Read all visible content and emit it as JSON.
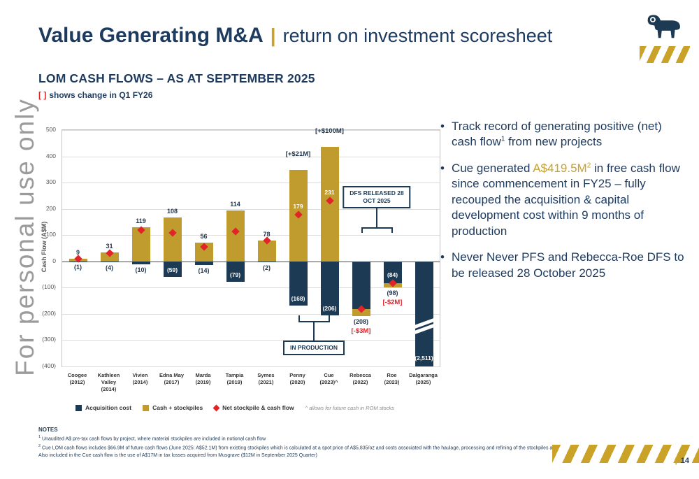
{
  "slide": {
    "title": "Value Generating M&A",
    "title_separator": "|",
    "subtitle": "return on investment scoresheet",
    "watermark": "For personal use only",
    "bullet_glyph": "•",
    "page_number_bar": "|",
    "page_number": "14"
  },
  "chart_header": {
    "title": "LOM CASH FLOWS – AS AT SEPTEMBER 2025",
    "bracket": "[ ]",
    "subtitle": "shows change in Q1 FY26"
  },
  "bullets": {
    "b1": {
      "t1": "Track record of generating positive (net) cash flow",
      "sup": "1",
      "t2": " from new projects"
    },
    "b2": {
      "t1": "Cue generated ",
      "highlight": "A$419.5M",
      "sup": "2",
      "t2": " in free cash flow since commencement in FY25 – fully recouped the acquisition & capital development cost within 9 months of production"
    },
    "b3": {
      "t1": "Never Never PFS and Rebecca-Roe DFS to be released 28 October 2025"
    }
  },
  "notes": {
    "heading": "NOTES",
    "n1": {
      "sup": "1",
      "text": " Unaudited A$ pre-tax cash flows by project, where material stockpiles are included in notional cash flow"
    },
    "n2": {
      "sup": "2",
      "text": " Cue LOM cash flows includes $66.9M of future cash flows (June 2025: A$52.1M) from existing stockpiles which is calculated at a spot price of A$5,835/oz and costs associated with the haulage, processing and refining of the stockpiles and associated gold content."
    },
    "n3": {
      "text": "Also included in the Cue cash flow is the use of A$17M in tax losses acquired from Musgrave ($12M in September 2025 Quarter)"
    }
  },
  "chart_data": {
    "type": "bar",
    "title": "LOM CASH FLOWS – AS AT SEPTEMBER 2025",
    "ylabel": "Cash Flow (A$M)",
    "ylim": [
      -400,
      500
    ],
    "grid": true,
    "legend_position": "bottom",
    "footnote": "^ allows for future cash in ROM stocks",
    "colors": {
      "acquisition": "#1d3a54",
      "cash": "#c09c2e",
      "net": "#e0242a"
    },
    "yticks": [
      {
        "v": 500,
        "label": "500"
      },
      {
        "v": 400,
        "label": "400"
      },
      {
        "v": 300,
        "label": "300"
      },
      {
        "v": 200,
        "label": "200"
      },
      {
        "v": 100,
        "label": "100"
      },
      {
        "v": 0,
        "label": "0"
      },
      {
        "v": -100,
        "label": "(100)"
      },
      {
        "v": -200,
        "label": "(200)"
      },
      {
        "v": -300,
        "label": "(300)"
      },
      {
        "v": -400,
        "label": "(400)"
      }
    ],
    "legend": [
      {
        "label": "Acquisition cost",
        "color": "#1d3a54",
        "marker": "square"
      },
      {
        "label": "Cash + stockpiles",
        "color": "#c09c2e",
        "marker": "square"
      },
      {
        "label": "Net stockpile & cash flow",
        "color": "#e0242a",
        "marker": "diamond"
      }
    ],
    "projects": [
      {
        "lines": [
          "Coogee",
          "(2012)"
        ],
        "gold": [
          0,
          10
        ],
        "navy": [
          0,
          -1
        ],
        "net": 9,
        "top_label": "9",
        "acq_label": "(1)",
        "acq_pos": "below"
      },
      {
        "lines": [
          "Kathleen",
          "Valley",
          "(2014)"
        ],
        "gold": [
          0,
          35
        ],
        "navy": [
          0,
          -4
        ],
        "net": 31,
        "top_label": "31",
        "acq_label": "(4)",
        "acq_pos": "below"
      },
      {
        "lines": [
          "Vivien",
          "(2014)"
        ],
        "gold": [
          0,
          129
        ],
        "navy": [
          0,
          -10
        ],
        "net": 119,
        "top_label": "119",
        "acq_label": "(10)",
        "acq_pos": "below"
      },
      {
        "lines": [
          "Edna May",
          "(2017)"
        ],
        "gold": [
          0,
          167
        ],
        "navy": [
          0,
          -59
        ],
        "net": 108,
        "top_label": "108",
        "acq_label": "(59)",
        "acq_pos": "inside"
      },
      {
        "lines": [
          "Marda",
          "(2019)"
        ],
        "gold": [
          0,
          70
        ],
        "navy": [
          0,
          -14
        ],
        "net": 56,
        "top_label": "56",
        "acq_label": "(14)",
        "acq_pos": "below"
      },
      {
        "lines": [
          "Tampia",
          "(2019)"
        ],
        "gold": [
          0,
          193
        ],
        "navy": [
          0,
          -79
        ],
        "net": 114,
        "top_label": "114",
        "acq_label": "(79)",
        "acq_pos": "inside"
      },
      {
        "lines": [
          "Symes",
          "(2021)"
        ],
        "gold": [
          0,
          80
        ],
        "navy": [
          0,
          -2
        ],
        "net": 78,
        "top_label": "78",
        "acq_label": "(2)",
        "acq_pos": "below"
      },
      {
        "lines": [
          "Penny",
          "(2020)"
        ],
        "gold": [
          0,
          347
        ],
        "navy": [
          0,
          -168
        ],
        "net": 179,
        "inner_net_label": "179",
        "change_above": "[+$21M]",
        "acq_label": "(168)",
        "acq_pos": "inside"
      },
      {
        "lines": [
          "Cue",
          "(2023)^"
        ],
        "gold": [
          0,
          437
        ],
        "navy": [
          0,
          -206
        ],
        "net": 231,
        "inner_net_label": "231",
        "change_above": "[+$100M]",
        "acq_label": "(206)",
        "acq_pos": "inside"
      },
      {
        "lines": [
          "Rebecca",
          "(2022)"
        ],
        "gold": [
          -208,
          -182
        ],
        "navy": [
          0,
          -182
        ],
        "net": -182,
        "acq_label": "(208)",
        "acq_pos": "below",
        "change_below": "[-$3M]"
      },
      {
        "lines": [
          "Roe",
          "(2023)"
        ],
        "gold": [
          -98,
          -84
        ],
        "navy": [
          0,
          -98
        ],
        "net": -84,
        "inner_net_label": "(84)",
        "acq_label": "(98)",
        "acq_pos": "below",
        "change_below": "[-$2M]"
      },
      {
        "lines": [
          "Dalgaranga",
          "(2025)"
        ],
        "navy": [
          0,
          -400
        ],
        "break_values": [
          -230,
          -252
        ],
        "bottom_inner_label": "(2,511)"
      }
    ],
    "callouts": [
      {
        "lines": [
          "DFS RELEASED 28",
          "OCT 2025"
        ],
        "from": 9,
        "to": 10,
        "bracket_value": 130,
        "box_center_value": 245,
        "dir": "down"
      },
      {
        "lines": [
          "IN PRODUCTION"
        ],
        "from": 7,
        "to": 8,
        "bracket_value": -228,
        "box_center_value": -330,
        "dir": "up"
      }
    ]
  }
}
